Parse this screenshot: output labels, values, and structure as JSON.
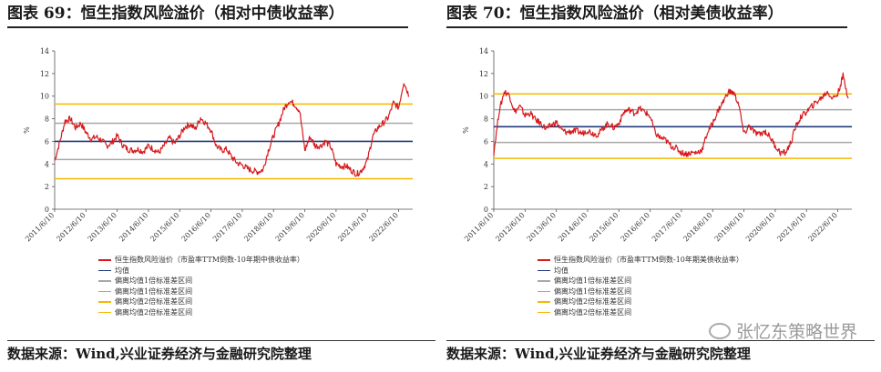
{
  "chart_data": [
    {
      "type": "line",
      "title": "图表 69：恒生指数风险溢价（相对中债收益率）",
      "xlabel": "",
      "ylabel": "%",
      "ylim": [
        0,
        14
      ],
      "yticks": [
        0,
        2,
        4,
        6,
        8,
        10,
        12,
        14
      ],
      "xticks": [
        "2011/6/10",
        "2012/6/10",
        "2013/6/10",
        "2014/6/10",
        "2015/6/10",
        "2016/6/10",
        "2017/6/10",
        "2018/6/10",
        "2019/6/10",
        "2020/6/10",
        "2021/6/10",
        "2022/6/10"
      ],
      "legend_position": "bottom",
      "grid": false,
      "series": [
        {
          "name": "恒生指数风险溢价（市盈率TTM倒数-10年期中债收益率）",
          "color": "#d7191c",
          "style": "line",
          "x": [
            "2011/6/10",
            "2011/8/10",
            "2011/10/10",
            "2011/12/10",
            "2012/2/10",
            "2012/4/10",
            "2012/6/10",
            "2012/8/10",
            "2012/10/10",
            "2012/12/10",
            "2013/2/10",
            "2013/4/10",
            "2013/6/10",
            "2013/8/10",
            "2013/10/10",
            "2013/12/10",
            "2014/2/10",
            "2014/4/10",
            "2014/6/10",
            "2014/8/10",
            "2014/10/10",
            "2014/12/10",
            "2015/2/10",
            "2015/4/10",
            "2015/6/10",
            "2015/8/10",
            "2015/10/10",
            "2015/12/10",
            "2016/2/10",
            "2016/4/10",
            "2016/6/10",
            "2016/8/10",
            "2016/10/10",
            "2016/12/10",
            "2017/2/10",
            "2017/4/10",
            "2017/6/10",
            "2017/8/10",
            "2017/10/10",
            "2017/12/10",
            "2018/2/10",
            "2018/4/10",
            "2018/6/10",
            "2018/8/10",
            "2018/10/10",
            "2018/12/10",
            "2019/2/10",
            "2019/4/10",
            "2019/6/10",
            "2019/8/10",
            "2019/10/10",
            "2019/12/10",
            "2020/2/10",
            "2020/4/10",
            "2020/6/10",
            "2020/8/10",
            "2020/10/10",
            "2020/12/10",
            "2021/2/10",
            "2021/4/10",
            "2021/6/10",
            "2021/8/10",
            "2021/10/10",
            "2021/12/10",
            "2022/2/10",
            "2022/4/10",
            "2022/6/10",
            "2022/8/10",
            "2022/10/10"
          ],
          "values": [
            4.3,
            6.0,
            7.8,
            8.0,
            7.2,
            7.6,
            6.8,
            6.2,
            6.4,
            6.1,
            5.6,
            5.9,
            6.5,
            5.7,
            5.3,
            5.2,
            5.3,
            5.1,
            5.6,
            5.3,
            5.0,
            5.6,
            6.3,
            5.8,
            6.5,
            7.3,
            7.5,
            7.1,
            8.1,
            7.6,
            7.0,
            5.6,
            5.2,
            5.3,
            4.6,
            4.1,
            3.9,
            3.6,
            3.4,
            3.3,
            3.5,
            5.2,
            6.5,
            7.6,
            8.9,
            9.6,
            9.3,
            8.7,
            5.2,
            6.4,
            5.6,
            5.6,
            6.0,
            5.5,
            4.0,
            3.8,
            3.8,
            3.4,
            3.1,
            3.5,
            4.3,
            6.4,
            7.2,
            7.6,
            8.1,
            9.4,
            9.0,
            11.3,
            10.0
          ]
        },
        {
          "name": "均值",
          "color": "#1f3a7a",
          "style": "hline",
          "value": 6.0
        },
        {
          "name": "偏离均值1倍标准差区间",
          "color": "#a8a8a8",
          "style": "hline",
          "value": 7.6
        },
        {
          "name": "偏离均值1倍标准差区间",
          "color": "#a8a8a8",
          "style": "hline",
          "value": 4.4
        },
        {
          "name": "偏离均值2倍标准差区间",
          "color": "#f5b800",
          "style": "hline",
          "value": 9.3
        },
        {
          "name": "偏离均值2倍标准差区间",
          "color": "#f5b800",
          "style": "hline",
          "value": 2.7
        }
      ]
    },
    {
      "type": "line",
      "title": "图表 70：恒生指数风险溢价（相对美债收益率）",
      "xlabel": "",
      "ylabel": "%",
      "ylim": [
        0,
        14
      ],
      "yticks": [
        0,
        2,
        4,
        6,
        8,
        10,
        12,
        14
      ],
      "xticks": [
        "2011/6/10",
        "2012/6/10",
        "2013/6/10",
        "2014/6/10",
        "2015/6/10",
        "2016/6/10",
        "2017/6/10",
        "2018/6/10",
        "2019/6/10",
        "2020/6/10",
        "2021/6/10",
        "2022/6/10"
      ],
      "legend_position": "bottom",
      "grid": false,
      "series": [
        {
          "name": "恒生指数风险溢价（市盈率TTM倒数-10年期美债收益率）",
          "color": "#d7191c",
          "style": "line",
          "x": [
            "2011/6/10",
            "2011/8/10",
            "2011/10/10",
            "2011/12/10",
            "2012/2/10",
            "2012/4/10",
            "2012/6/10",
            "2012/8/10",
            "2012/10/10",
            "2012/12/10",
            "2013/2/10",
            "2013/4/10",
            "2013/6/10",
            "2013/8/10",
            "2013/10/10",
            "2013/12/10",
            "2014/2/10",
            "2014/4/10",
            "2014/6/10",
            "2014/8/10",
            "2014/10/10",
            "2014/12/10",
            "2015/2/10",
            "2015/4/10",
            "2015/6/10",
            "2015/8/10",
            "2015/10/10",
            "2015/12/10",
            "2016/2/10",
            "2016/4/10",
            "2016/6/10",
            "2016/8/10",
            "2016/10/10",
            "2016/12/10",
            "2017/2/10",
            "2017/4/10",
            "2017/6/10",
            "2017/8/10",
            "2017/10/10",
            "2017/12/10",
            "2018/2/10",
            "2018/4/10",
            "2018/6/10",
            "2018/8/10",
            "2018/10/10",
            "2018/12/10",
            "2019/2/10",
            "2019/4/10",
            "2019/6/10",
            "2019/8/10",
            "2019/10/10",
            "2019/12/10",
            "2020/2/10",
            "2020/4/10",
            "2020/6/10",
            "2020/8/10",
            "2020/10/10",
            "2020/12/10",
            "2021/2/10",
            "2021/4/10",
            "2021/6/10",
            "2021/8/10",
            "2021/10/10",
            "2021/12/10",
            "2022/2/10",
            "2022/4/10",
            "2022/6/10",
            "2022/8/10",
            "2022/10/10"
          ],
          "values": [
            5.0,
            8.6,
            10.4,
            10.1,
            8.6,
            9.1,
            8.3,
            8.5,
            7.9,
            7.6,
            7.1,
            7.4,
            7.7,
            7.0,
            6.8,
            6.9,
            6.9,
            6.7,
            7.0,
            6.7,
            6.6,
            7.2,
            7.6,
            7.2,
            7.6,
            8.6,
            8.8,
            8.5,
            8.9,
            8.6,
            8.2,
            6.7,
            6.3,
            6.1,
            5.6,
            5.4,
            5.0,
            4.9,
            5.0,
            5.0,
            5.3,
            6.8,
            7.6,
            8.7,
            9.5,
            10.4,
            10.3,
            9.3,
            6.6,
            7.4,
            6.8,
            6.6,
            6.9,
            6.4,
            5.6,
            5.0,
            5.0,
            5.9,
            7.4,
            8.2,
            8.6,
            9.1,
            9.5,
            9.9,
            10.4,
            9.8,
            10.2,
            11.8,
            9.8
          ]
        },
        {
          "name": "均值",
          "color": "#1f3a7a",
          "style": "hline",
          "value": 7.3
        },
        {
          "name": "偏离均值1倍标准差区间",
          "color": "#a8a8a8",
          "style": "hline",
          "value": 8.8
        },
        {
          "name": "偏离均值1倍标准差区间",
          "color": "#a8a8a8",
          "style": "hline",
          "value": 5.9
        },
        {
          "name": "偏离均值2倍标准差区间",
          "color": "#f5b800",
          "style": "hline",
          "value": 10.2
        },
        {
          "name": "偏离均值2倍标准差区间",
          "color": "#f5b800",
          "style": "hline",
          "value": 4.5
        }
      ]
    }
  ],
  "source": [
    "数据来源：Wind,兴业证券经济与金融研究院整理",
    "数据来源：Wind,兴业证券经济与金融研究院整理"
  ],
  "watermark": {
    "text": "张忆东策略世界",
    "icon": "wechat-icon",
    "color": "#9a9a9a"
  }
}
